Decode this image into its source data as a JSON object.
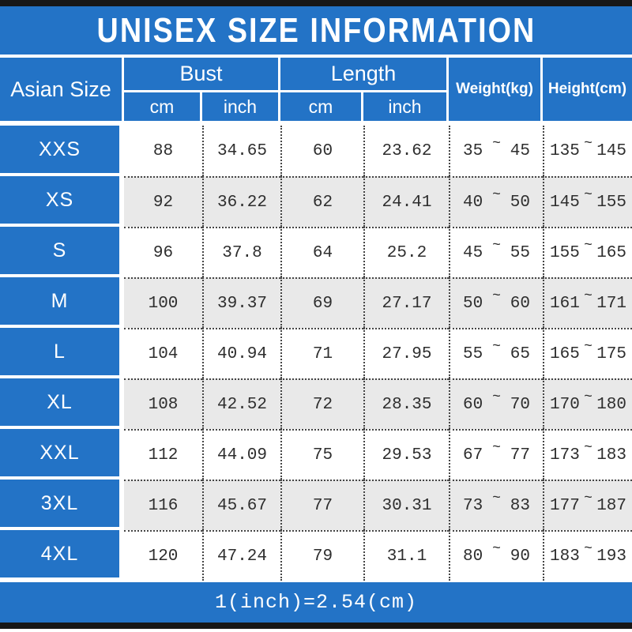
{
  "title": "UNISEX SIZE INFORMATION",
  "colors": {
    "brand_blue": "#2373c6",
    "alt_row_gray": "#e9e9e9",
    "frame_bar_black": "#171717",
    "data_text": "#2e2e2e",
    "header_text": "#ffffff"
  },
  "table": {
    "size_column_header": "Asian Size",
    "groups": [
      {
        "label": "Bust",
        "sub": [
          "cm",
          "inch"
        ]
      },
      {
        "label": "Length",
        "sub": [
          "cm",
          "inch"
        ]
      }
    ],
    "single_headers": [
      "Weight(kg)",
      "Height(cm)"
    ],
    "tilde": "~",
    "rows": [
      {
        "size": "XXS",
        "bust_cm": "88",
        "bust_inch": "34.65",
        "length_cm": "60",
        "length_inch": "23.62",
        "weight_min": "35",
        "weight_max": "45",
        "height_min": "135",
        "height_max": "145"
      },
      {
        "size": "XS",
        "bust_cm": "92",
        "bust_inch": "36.22",
        "length_cm": "62",
        "length_inch": "24.41",
        "weight_min": "40",
        "weight_max": "50",
        "height_min": "145",
        "height_max": "155"
      },
      {
        "size": "S",
        "bust_cm": "96",
        "bust_inch": "37.8",
        "length_cm": "64",
        "length_inch": "25.2",
        "weight_min": "45",
        "weight_max": "55",
        "height_min": "155",
        "height_max": "165"
      },
      {
        "size": "M",
        "bust_cm": "100",
        "bust_inch": "39.37",
        "length_cm": "69",
        "length_inch": "27.17",
        "weight_min": "50",
        "weight_max": "60",
        "height_min": "161",
        "height_max": "171"
      },
      {
        "size": "L",
        "bust_cm": "104",
        "bust_inch": "40.94",
        "length_cm": "71",
        "length_inch": "27.95",
        "weight_min": "55",
        "weight_max": "65",
        "height_min": "165",
        "height_max": "175"
      },
      {
        "size": "XL",
        "bust_cm": "108",
        "bust_inch": "42.52",
        "length_cm": "72",
        "length_inch": "28.35",
        "weight_min": "60",
        "weight_max": "70",
        "height_min": "170",
        "height_max": "180"
      },
      {
        "size": "XXL",
        "bust_cm": "112",
        "bust_inch": "44.09",
        "length_cm": "75",
        "length_inch": "29.53",
        "weight_min": "67",
        "weight_max": "77",
        "height_min": "173",
        "height_max": "183"
      },
      {
        "size": "3XL",
        "bust_cm": "116",
        "bust_inch": "45.67",
        "length_cm": "77",
        "length_inch": "30.31",
        "weight_min": "73",
        "weight_max": "83",
        "height_min": "177",
        "height_max": "187"
      },
      {
        "size": "4XL",
        "bust_cm": "120",
        "bust_inch": "47.24",
        "length_cm": "79",
        "length_inch": "31.1",
        "weight_min": "80",
        "weight_max": "90",
        "height_min": "183",
        "height_max": "193"
      }
    ]
  },
  "footer": {
    "note": "1(inch)=2.54(cm)"
  },
  "chart_data": {
    "type": "table",
    "title": "UNISEX SIZE INFORMATION",
    "columns": [
      "Asian Size",
      "Bust cm",
      "Bust inch",
      "Length cm",
      "Length inch",
      "Weight(kg)",
      "Height(cm)"
    ],
    "rows": [
      [
        "XXS",
        88,
        34.65,
        60,
        23.62,
        "35~45",
        "135~145"
      ],
      [
        "XS",
        92,
        36.22,
        62,
        24.41,
        "40~50",
        "145~155"
      ],
      [
        "S",
        96,
        37.8,
        64,
        25.2,
        "45~55",
        "155~165"
      ],
      [
        "M",
        100,
        39.37,
        69,
        27.17,
        "50~60",
        "161~171"
      ],
      [
        "L",
        104,
        40.94,
        71,
        27.95,
        "55~65",
        "165~175"
      ],
      [
        "XL",
        108,
        42.52,
        72,
        28.35,
        "60~70",
        "170~180"
      ],
      [
        "XXL",
        112,
        44.09,
        75,
        29.53,
        "67~77",
        "173~183"
      ],
      [
        "3XL",
        116,
        45.67,
        77,
        30.31,
        "73~83",
        "177~187"
      ],
      [
        "4XL",
        120,
        47.24,
        79,
        31.1,
        "80~90",
        "183~193"
      ]
    ],
    "footnote": "1(inch)=2.54(cm)"
  }
}
